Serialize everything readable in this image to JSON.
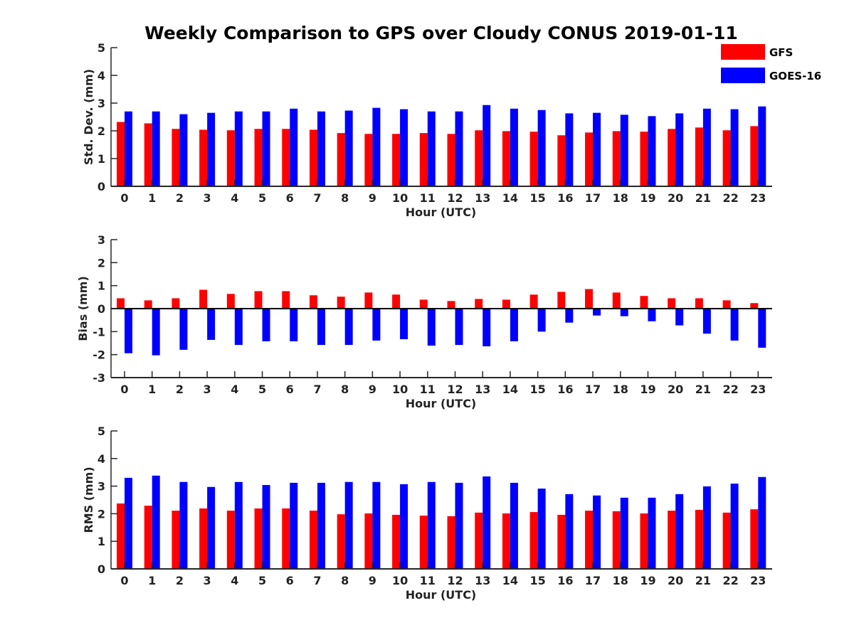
{
  "figure": {
    "title": "Weekly Comparison to GPS over Cloudy CONUS 2019-01-11"
  },
  "legend": {
    "placement": "top-right",
    "items": [
      {
        "label": "GFS",
        "color": "#ff0000"
      },
      {
        "label": "GOES-16",
        "color": "#0000ff"
      }
    ]
  },
  "chart_data": [
    {
      "type": "bar",
      "xlabel": "Hour (UTC)",
      "ylabel": "Std. Dev. (mm)",
      "ylim": [
        0,
        5
      ],
      "yticks": [
        0,
        1,
        2,
        3,
        4,
        5
      ],
      "categories": [
        "0",
        "1",
        "2",
        "3",
        "4",
        "5",
        "6",
        "7",
        "8",
        "9",
        "10",
        "11",
        "12",
        "13",
        "14",
        "15",
        "16",
        "17",
        "18",
        "19",
        "20",
        "21",
        "22",
        "23"
      ],
      "series": [
        {
          "name": "GFS",
          "color": "#ff0000",
          "values": [
            2.32,
            2.27,
            2.07,
            2.04,
            2.02,
            2.07,
            2.07,
            2.04,
            1.92,
            1.89,
            1.89,
            1.92,
            1.89,
            2.02,
            1.99,
            1.97,
            1.84,
            1.94,
            1.99,
            1.97,
            2.07,
            2.12,
            2.02,
            2.17
          ]
        },
        {
          "name": "GOES-16",
          "color": "#0000ff",
          "values": [
            2.7,
            2.7,
            2.6,
            2.65,
            2.7,
            2.7,
            2.8,
            2.7,
            2.73,
            2.83,
            2.78,
            2.7,
            2.7,
            2.93,
            2.8,
            2.75,
            2.63,
            2.65,
            2.58,
            2.53,
            2.63,
            2.8,
            2.78,
            2.88
          ]
        }
      ]
    },
    {
      "type": "bar",
      "xlabel": "Hour (UTC)",
      "ylabel": "Bias (mm)",
      "ylim": [
        -3,
        3
      ],
      "yticks": [
        -3,
        -2,
        -1,
        0,
        1,
        2,
        3
      ],
      "categories": [
        "0",
        "1",
        "2",
        "3",
        "4",
        "5",
        "6",
        "7",
        "8",
        "9",
        "10",
        "11",
        "12",
        "13",
        "14",
        "15",
        "16",
        "17",
        "18",
        "19",
        "20",
        "21",
        "22",
        "23"
      ],
      "series": [
        {
          "name": "GFS",
          "color": "#ff0000",
          "values": [
            0.45,
            0.36,
            0.45,
            0.82,
            0.64,
            0.76,
            0.76,
            0.58,
            0.52,
            0.7,
            0.61,
            0.39,
            0.33,
            0.42,
            0.39,
            0.61,
            0.73,
            0.85,
            0.7,
            0.55,
            0.45,
            0.45,
            0.36,
            0.24
          ]
        },
        {
          "name": "GOES-16",
          "color": "#0000ff",
          "values": [
            -1.94,
            -2.03,
            -1.79,
            -1.36,
            -1.58,
            -1.42,
            -1.42,
            -1.58,
            -1.58,
            -1.39,
            -1.33,
            -1.61,
            -1.58,
            -1.64,
            -1.42,
            -1.0,
            -0.61,
            -0.3,
            -0.33,
            -0.55,
            -0.73,
            -1.09,
            -1.39,
            -1.7
          ]
        }
      ]
    },
    {
      "type": "bar",
      "xlabel": "Hour (UTC)",
      "ylabel": "RMS (mm)",
      "ylim": [
        0,
        5
      ],
      "yticks": [
        0,
        1,
        2,
        3,
        4,
        5
      ],
      "categories": [
        "0",
        "1",
        "2",
        "3",
        "4",
        "5",
        "6",
        "7",
        "8",
        "9",
        "10",
        "11",
        "12",
        "13",
        "14",
        "15",
        "16",
        "17",
        "18",
        "19",
        "20",
        "21",
        "22",
        "23"
      ],
      "series": [
        {
          "name": "GFS",
          "color": "#ff0000",
          "values": [
            2.37,
            2.29,
            2.11,
            2.19,
            2.11,
            2.19,
            2.19,
            2.11,
            1.98,
            2.01,
            1.96,
            1.93,
            1.91,
            2.04,
            2.01,
            2.06,
            1.96,
            2.11,
            2.09,
            2.01,
            2.11,
            2.14,
            2.04,
            2.16
          ]
        },
        {
          "name": "GOES-16",
          "color": "#0000ff",
          "values": [
            3.3,
            3.38,
            3.15,
            2.97,
            3.15,
            3.04,
            3.12,
            3.12,
            3.15,
            3.15,
            3.07,
            3.15,
            3.12,
            3.35,
            3.12,
            2.91,
            2.71,
            2.66,
            2.58,
            2.58,
            2.71,
            2.99,
            3.09,
            3.33
          ]
        }
      ]
    }
  ]
}
